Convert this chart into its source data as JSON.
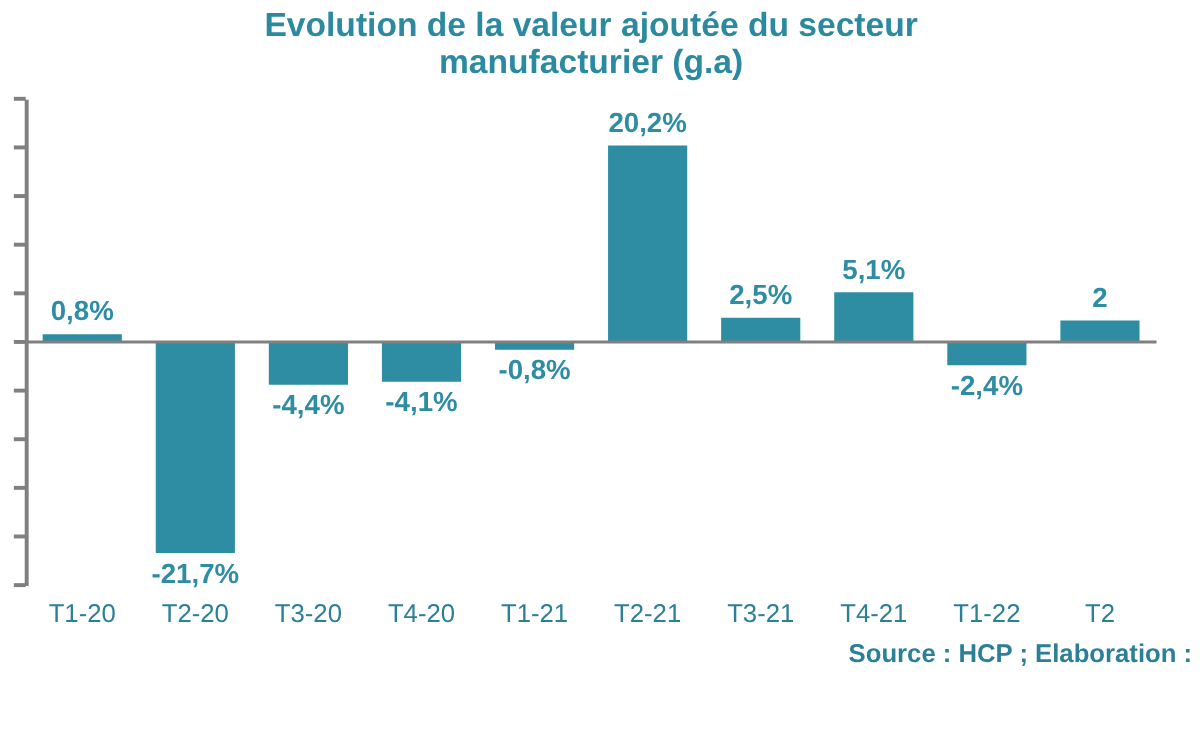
{
  "chart_data": {
    "type": "bar",
    "title": "Evolution de la valeur ajoutée du secteur manufacturier (g.a)",
    "categories": [
      "T1-20",
      "T2-20",
      "T3-20",
      "T4-20",
      "T1-21",
      "T2-21",
      "T3-21",
      "T4-21",
      "T1-22",
      "T2"
    ],
    "values": [
      0.8,
      -21.7,
      -4.4,
      -4.1,
      -0.8,
      20.2,
      2.5,
      5.1,
      -2.4,
      2.2
    ],
    "value_labels": [
      "0,8%",
      "-21,7%",
      "-4,4%",
      "-4,1%",
      "-0,8%",
      "20,2%",
      "2,5%",
      "5,1%",
      "-2,4%",
      "2"
    ],
    "color": "#2e8ca3",
    "ylim": [
      -25,
      25
    ],
    "yticks": [
      {
        "value": -25,
        "label": null
      },
      {
        "value": -20,
        "label": null
      },
      {
        "value": -15,
        "label": null
      },
      {
        "value": -10,
        "label": null
      },
      {
        "value": -5,
        "label": null
      },
      {
        "value": 0,
        "label": null
      },
      {
        "value": 5,
        "label": null
      },
      {
        "value": 10,
        "label": null
      },
      {
        "value": 15,
        "label": null
      },
      {
        "value": 20,
        "label": null
      },
      {
        "value": 25,
        "label": null
      }
    ],
    "grid": false,
    "tick_labels": "x",
    "annotations": [
      "Source : HCP ; Elaboration :"
    ]
  }
}
